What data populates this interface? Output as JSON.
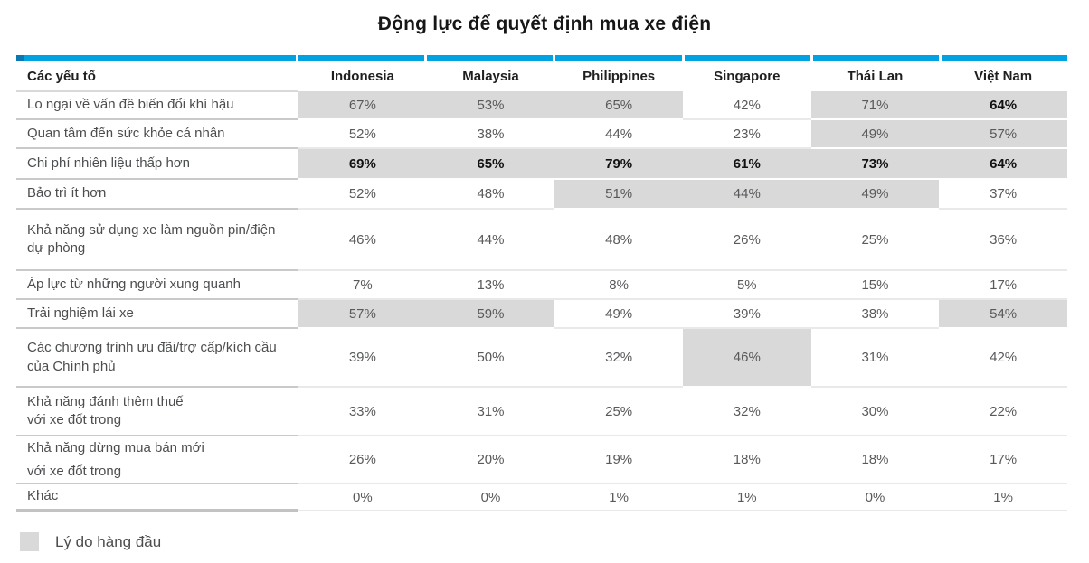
{
  "title": "Động lực để quyết định mua xe điện",
  "colors": {
    "accent_bar": "#00a2e1",
    "accent_bar_cap": "#0b78b4",
    "highlight_fill": "#d9d9d9"
  },
  "legend": {
    "label": "Lý do hàng đầu"
  },
  "chart_data": {
    "type": "table",
    "title": "Động lực để quyết định mua xe điện",
    "row_header": "Các yếu tố",
    "columns": [
      "Indonesia",
      "Malaysia",
      "Philippines",
      "Singapore",
      "Thái Lan",
      "Việt Nam"
    ],
    "legend": "Lý do hàng đầu",
    "highlight_meaning": "gray cell = top reason for that country",
    "rows": [
      {
        "factor": "Lo ngại về vấn đề biến đổi khí hậu",
        "values": [
          "67%",
          "53%",
          "65%",
          "42%",
          "71%",
          "64%"
        ],
        "top_reason": [
          true,
          true,
          true,
          false,
          true,
          true
        ],
        "bold": [
          false,
          false,
          false,
          false,
          false,
          true
        ]
      },
      {
        "factor": "Quan tâm đến sức khỏe cá nhân",
        "values": [
          "52%",
          "38%",
          "44%",
          "23%",
          "49%",
          "57%"
        ],
        "top_reason": [
          false,
          false,
          false,
          false,
          true,
          true
        ],
        "bold": [
          false,
          false,
          false,
          false,
          false,
          false
        ]
      },
      {
        "factor": "Chi phí nhiên liệu thấp hơn",
        "values": [
          "69%",
          "65%",
          "79%",
          "61%",
          "73%",
          "64%"
        ],
        "top_reason": [
          true,
          true,
          true,
          true,
          true,
          true
        ],
        "bold": [
          true,
          true,
          true,
          true,
          true,
          true
        ]
      },
      {
        "factor": "Bảo trì ít hơn",
        "values": [
          "52%",
          "48%",
          "51%",
          "44%",
          "49%",
          "37%"
        ],
        "top_reason": [
          false,
          false,
          true,
          true,
          true,
          false
        ],
        "bold": [
          false,
          false,
          false,
          false,
          false,
          false
        ]
      },
      {
        "factor": "Khả năng sử dụng xe làm nguồn pin/điện\ndự phòng",
        "values": [
          "46%",
          "44%",
          "48%",
          "26%",
          "25%",
          "36%"
        ],
        "top_reason": [
          false,
          false,
          false,
          false,
          false,
          false
        ],
        "bold": [
          false,
          false,
          false,
          false,
          false,
          false
        ]
      },
      {
        "factor": "Áp lực từ những người xung quanh",
        "values": [
          "7%",
          "13%",
          "8%",
          "5%",
          "15%",
          "17%"
        ],
        "top_reason": [
          false,
          false,
          false,
          false,
          false,
          false
        ],
        "bold": [
          false,
          false,
          false,
          false,
          false,
          false
        ]
      },
      {
        "factor": "Trải nghiệm lái xe",
        "values": [
          "57%",
          "59%",
          "49%",
          "39%",
          "38%",
          "54%"
        ],
        "top_reason": [
          true,
          true,
          false,
          false,
          false,
          true
        ],
        "bold": [
          false,
          false,
          false,
          false,
          false,
          false
        ]
      },
      {
        "factor": "Các chương trình ưu đãi/trợ cấp/kích cầu\ncủa Chính phủ",
        "values": [
          "39%",
          "50%",
          "32%",
          "46%",
          "31%",
          "42%"
        ],
        "top_reason": [
          false,
          false,
          false,
          true,
          false,
          false
        ],
        "bold": [
          false,
          false,
          false,
          false,
          false,
          false
        ]
      },
      {
        "factor": "Khả năng đánh thêm thuế\nvới xe đốt trong",
        "values": [
          "33%",
          "31%",
          "25%",
          "32%",
          "30%",
          "22%"
        ],
        "top_reason": [
          false,
          false,
          false,
          false,
          false,
          false
        ],
        "bold": [
          false,
          false,
          false,
          false,
          false,
          false
        ]
      },
      {
        "factor": "Khả năng dừng mua bán mới\nvới xe đốt trong",
        "values": [
          "26%",
          "20%",
          "19%",
          "18%",
          "18%",
          "17%"
        ],
        "top_reason": [
          false,
          false,
          false,
          false,
          false,
          false
        ],
        "bold": [
          false,
          false,
          false,
          false,
          false,
          false
        ]
      },
      {
        "factor": "Khác",
        "values": [
          "0%",
          "0%",
          "1%",
          "1%",
          "0%",
          "1%"
        ],
        "top_reason": [
          false,
          false,
          false,
          false,
          false,
          false
        ],
        "bold": [
          false,
          false,
          false,
          false,
          false,
          false
        ]
      }
    ]
  }
}
